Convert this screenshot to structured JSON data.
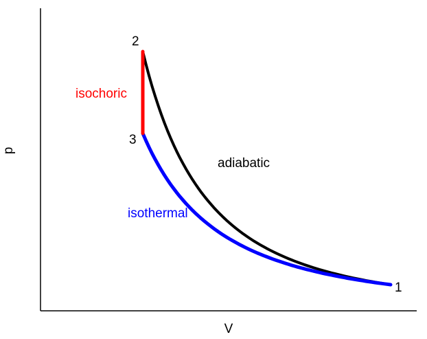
{
  "axes": {
    "x_label": "V",
    "y_label": "p"
  },
  "points": [
    {
      "id": "1",
      "label": "1"
    },
    {
      "id": "2",
      "label": "2"
    },
    {
      "id": "3",
      "label": "3"
    }
  ],
  "processes": [
    {
      "id": "adiabatic",
      "label": "adiabatic",
      "from": "1",
      "to": "2",
      "color": "#000000"
    },
    {
      "id": "isochoric",
      "label": "isochoric",
      "from": "2",
      "to": "3",
      "color": "#ff0000"
    },
    {
      "id": "isothermal",
      "label": "isothermal",
      "from": "3",
      "to": "1",
      "color": "#0000ff"
    }
  ]
}
